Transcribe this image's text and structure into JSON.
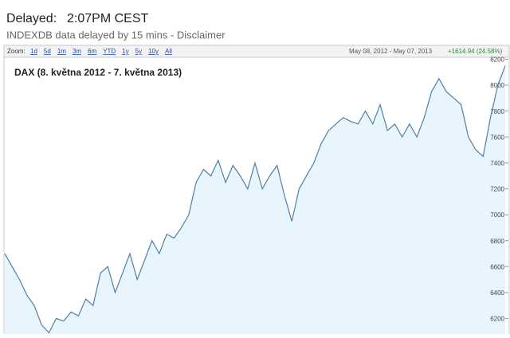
{
  "header": {
    "delayed_label": "Delayed:",
    "time": "2:07PM CEST",
    "source": "INDEXDB data delayed by 15 mins - Disclaimer"
  },
  "toolbar": {
    "zoom_label": "Zoom:",
    "zoom_options": [
      "1d",
      "5d",
      "1m",
      "3m",
      "6m",
      "YTD",
      "1y",
      "5y",
      "10y",
      "All"
    ],
    "range": "May 08, 2012 - May 07, 2013",
    "change": "+1614.94 (24.58%)"
  },
  "chart_data": {
    "type": "area",
    "title": "DAX (8. května 2012 - 7. května 2013)",
    "color": "#4f7fa8",
    "fill": "#e9f5fc",
    "values": [
      6700,
      6600,
      6500,
      6380,
      6300,
      6150,
      6090,
      6200,
      6180,
      6250,
      6220,
      6350,
      6300,
      6550,
      6600,
      6400,
      6550,
      6700,
      6500,
      6650,
      6800,
      6700,
      6850,
      6820,
      6900,
      7000,
      7250,
      7350,
      7300,
      7420,
      7250,
      7380,
      7300,
      7200,
      7400,
      7200,
      7300,
      7380,
      7150,
      6950,
      7200,
      7300,
      7400,
      7550,
      7650,
      7700,
      7750,
      7720,
      7700,
      7800,
      7700,
      7850,
      7650,
      7700,
      7600,
      7700,
      7600,
      7750,
      7950,
      8050,
      7950,
      7900,
      7850,
      7600,
      7500,
      7450,
      7750,
      8000,
      8150
    ],
    "ylim": [
      6080,
      8215
    ],
    "yticks": [
      6200,
      6400,
      6600,
      6800,
      7000,
      7200,
      7400,
      7600,
      7800,
      8000,
      8200
    ]
  }
}
